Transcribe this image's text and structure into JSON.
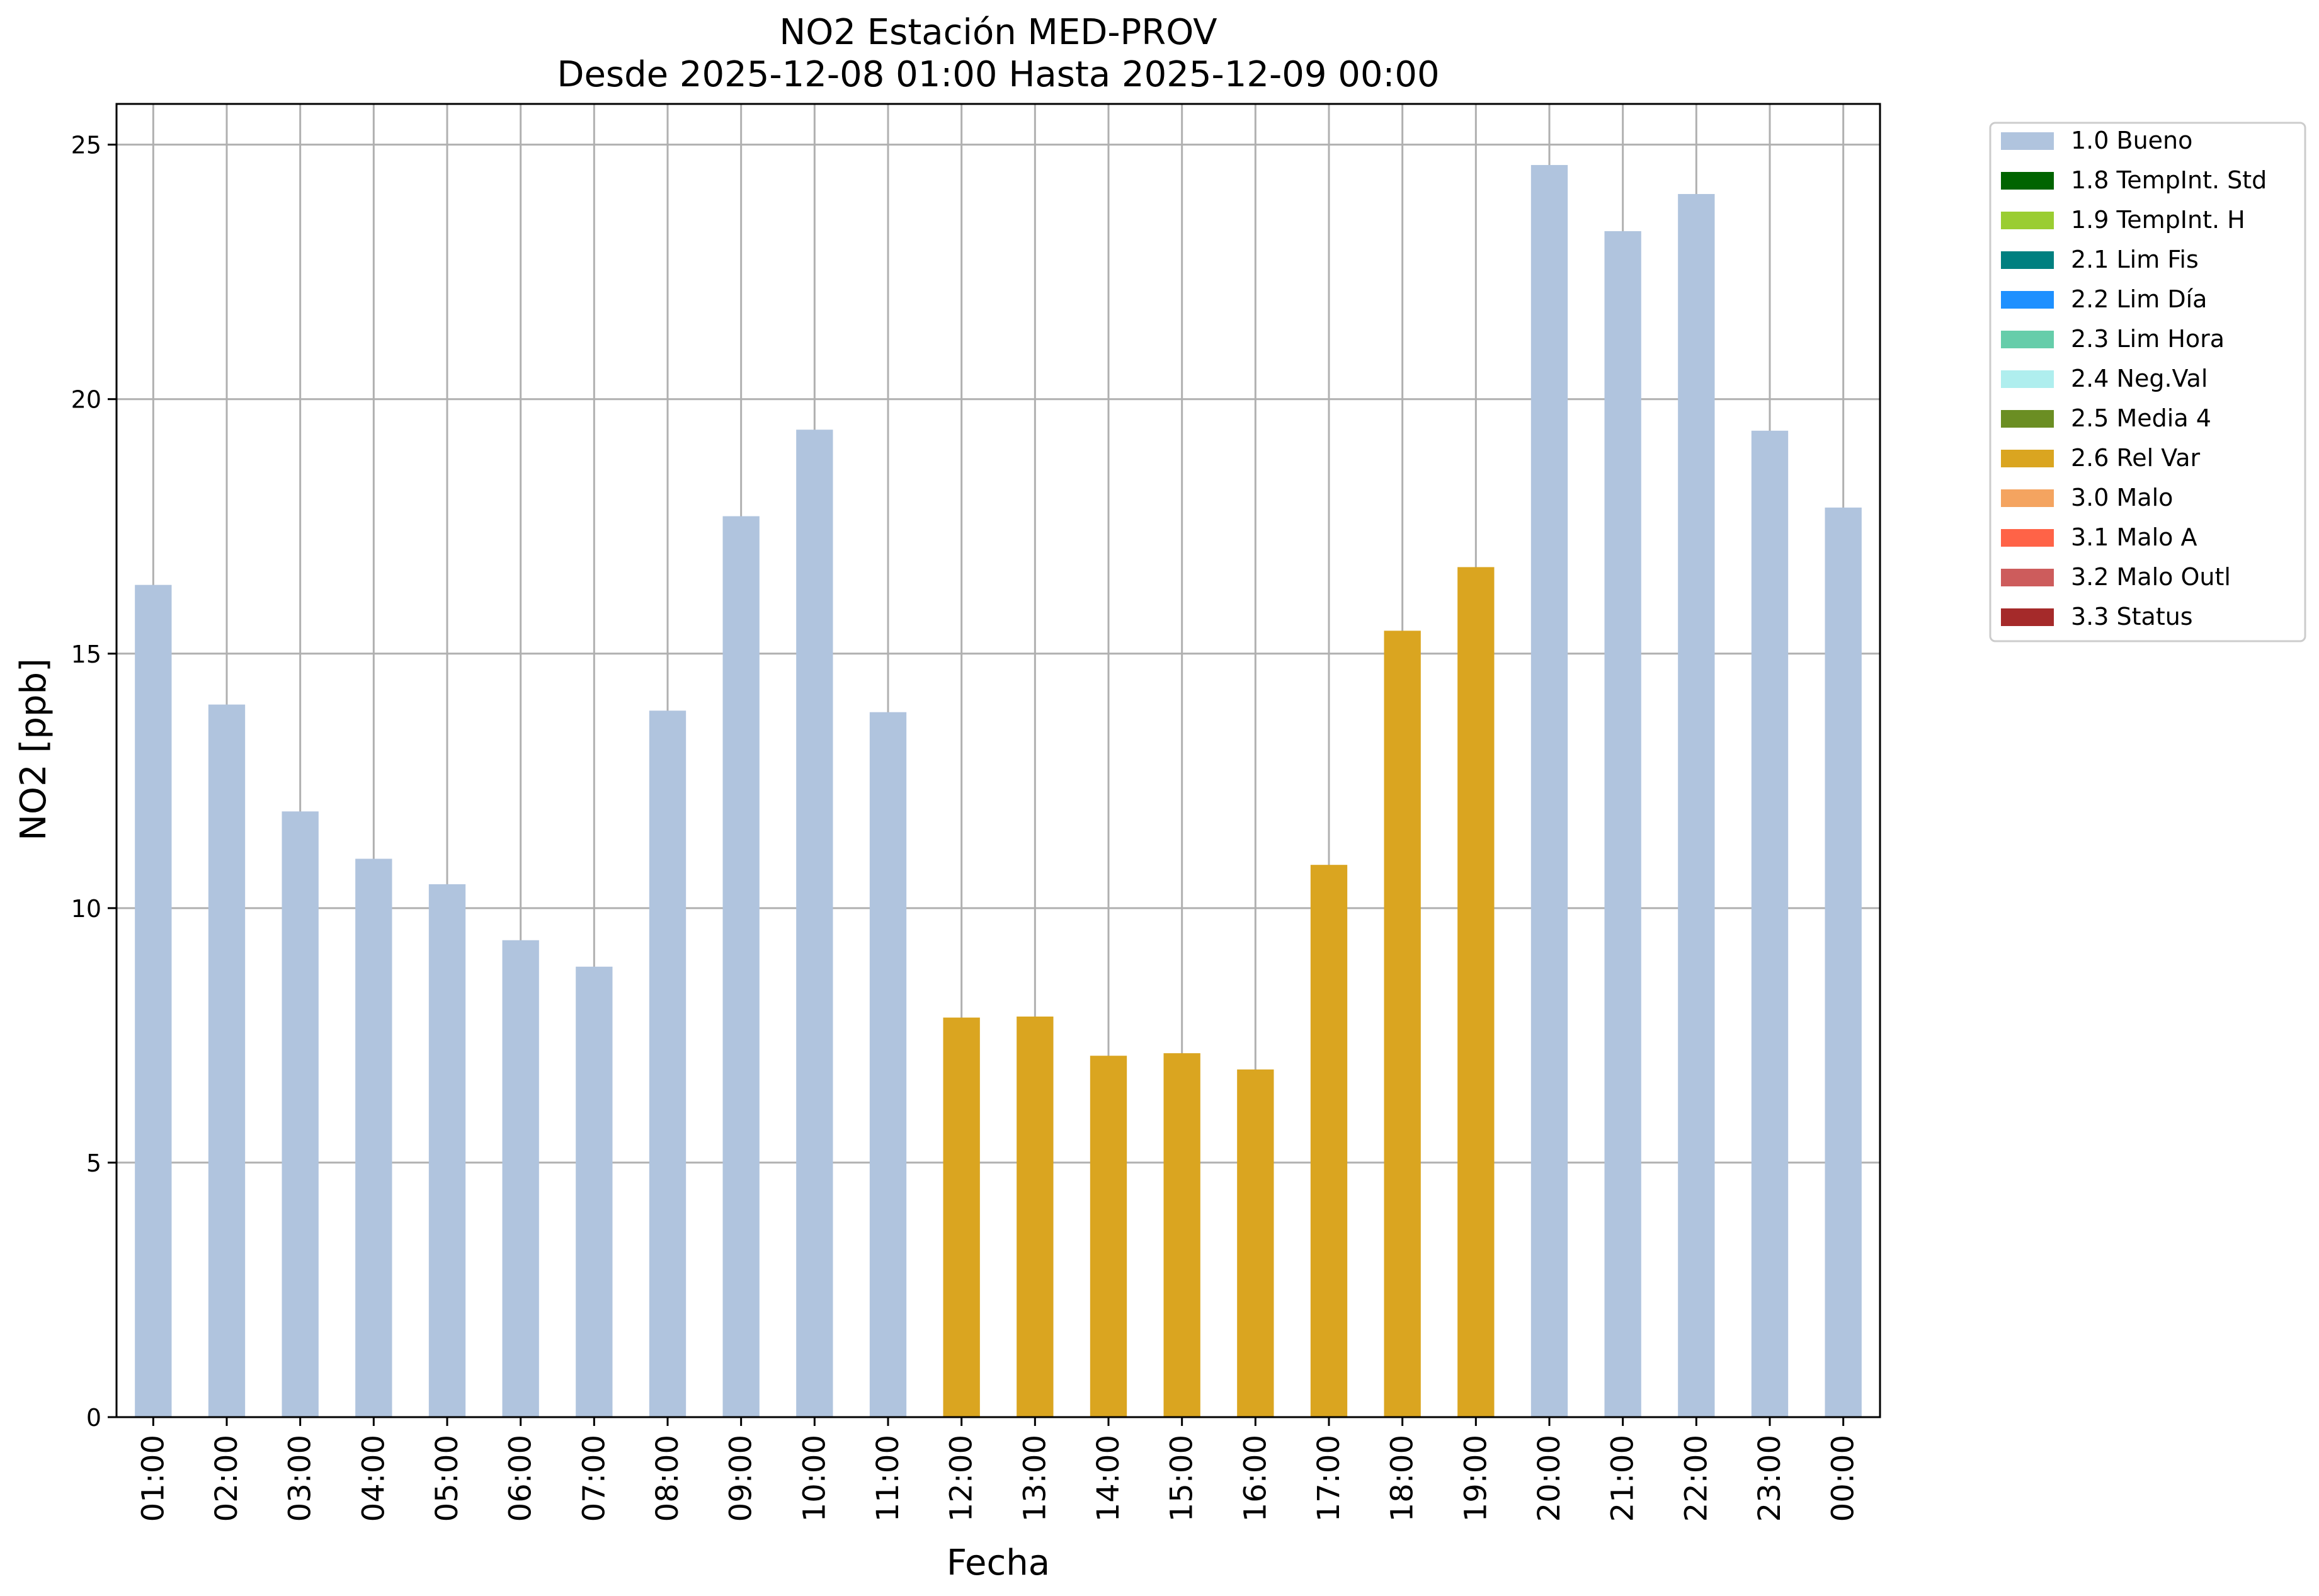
{
  "chart_data": {
    "type": "bar",
    "title": "NO2 Estación MED-PROV",
    "subtitle": "Desde 2025-12-08 01:00 Hasta 2025-12-09 00:00",
    "xlabel": "Fecha",
    "ylabel": "NO2 [ppb]",
    "ylim": [
      0,
      25.8
    ],
    "yticks": [
      0,
      5,
      10,
      15,
      20,
      25
    ],
    "grid": true,
    "legend_position": "outside-top-right",
    "categories": [
      "01:00",
      "02:00",
      "03:00",
      "04:00",
      "05:00",
      "06:00",
      "07:00",
      "08:00",
      "09:00",
      "10:00",
      "11:00",
      "12:00",
      "13:00",
      "14:00",
      "15:00",
      "16:00",
      "17:00",
      "18:00",
      "19:00",
      "20:00",
      "21:00",
      "22:00",
      "23:00",
      "00:00"
    ],
    "values": [
      16.35,
      14.0,
      11.9,
      10.97,
      10.47,
      9.37,
      8.85,
      13.88,
      17.7,
      19.4,
      13.85,
      7.85,
      7.87,
      7.1,
      7.15,
      6.83,
      10.85,
      15.45,
      16.7,
      24.6,
      23.3,
      24.03,
      19.38,
      17.87
    ],
    "flags": [
      "1.0 Bueno",
      "1.0 Bueno",
      "1.0 Bueno",
      "1.0 Bueno",
      "1.0 Bueno",
      "1.0 Bueno",
      "1.0 Bueno",
      "1.0 Bueno",
      "1.0 Bueno",
      "1.0 Bueno",
      "1.0 Bueno",
      "2.6 Rel Var",
      "2.6 Rel Var",
      "2.6 Rel Var",
      "2.6 Rel Var",
      "2.6 Rel Var",
      "2.6 Rel Var",
      "2.6 Rel Var",
      "2.6 Rel Var",
      "1.0 Bueno",
      "1.0 Bueno",
      "1.0 Bueno",
      "1.0 Bueno",
      "1.0 Bueno"
    ],
    "legend": [
      {
        "label": "1.0 Bueno",
        "color": "#b0c4de"
      },
      {
        "label": "1.8 TempInt. Std",
        "color": "#006400"
      },
      {
        "label": "1.9 TempInt. H",
        "color": "#9acd32"
      },
      {
        "label": "2.1 Lim Fis",
        "color": "#008080"
      },
      {
        "label": "2.2 Lim Día",
        "color": "#1e90ff"
      },
      {
        "label": "2.3 Lim Hora",
        "color": "#66cdaa"
      },
      {
        "label": "2.4 Neg.Val",
        "color": "#afeeee"
      },
      {
        "label": "2.5 Media 4",
        "color": "#6b8e23"
      },
      {
        "label": "2.6 Rel Var",
        "color": "#daa520"
      },
      {
        "label": "3.0 Malo",
        "color": "#f4a460"
      },
      {
        "label": "3.1 Malo A",
        "color": "#ff6347"
      },
      {
        "label": "3.2 Malo Outl",
        "color": "#cd5c5c"
      },
      {
        "label": "3.3 Status",
        "color": "#a52a2a"
      }
    ]
  }
}
